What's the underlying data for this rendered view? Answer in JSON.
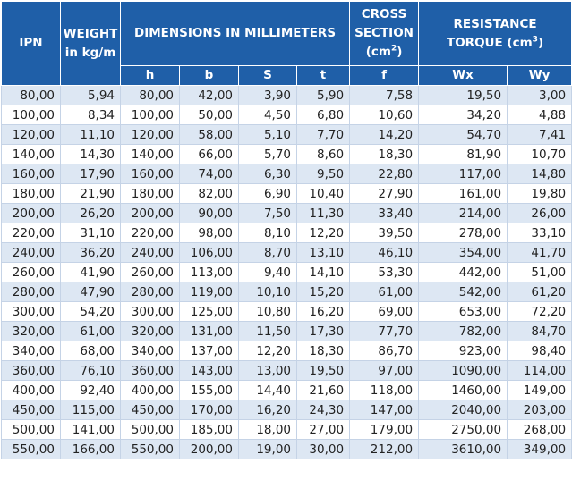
{
  "header": {
    "ipn": "IPN",
    "weight": {
      "line1": "WEIGHT",
      "line2": "in kg/m"
    },
    "dimensions": "DIMENSIONS IN MILLIMETERS",
    "cross_section": {
      "line1": "CROSS",
      "line2": "SECTION",
      "unit": "(cm",
      "sup": "2",
      "close": ")"
    },
    "resistance": {
      "line1": "RESISTANCE",
      "line2": "TORQUE (cm",
      "sup": "3",
      "close": ")"
    },
    "subheaders": [
      "h",
      "b",
      "S",
      "t",
      "f",
      "Wx",
      "Wy"
    ]
  },
  "table": {
    "rows": [
      [
        "80,00",
        "5,94",
        "80,00",
        "42,00",
        "3,90",
        "5,90",
        "7,58",
        "19,50",
        "3,00"
      ],
      [
        "100,00",
        "8,34",
        "100,00",
        "50,00",
        "4,50",
        "6,80",
        "10,60",
        "34,20",
        "4,88"
      ],
      [
        "120,00",
        "11,10",
        "120,00",
        "58,00",
        "5,10",
        "7,70",
        "14,20",
        "54,70",
        "7,41"
      ],
      [
        "140,00",
        "14,30",
        "140,00",
        "66,00",
        "5,70",
        "8,60",
        "18,30",
        "81,90",
        "10,70"
      ],
      [
        "160,00",
        "17,90",
        "160,00",
        "74,00",
        "6,30",
        "9,50",
        "22,80",
        "117,00",
        "14,80"
      ],
      [
        "180,00",
        "21,90",
        "180,00",
        "82,00",
        "6,90",
        "10,40",
        "27,90",
        "161,00",
        "19,80"
      ],
      [
        "200,00",
        "26,20",
        "200,00",
        "90,00",
        "7,50",
        "11,30",
        "33,40",
        "214,00",
        "26,00"
      ],
      [
        "220,00",
        "31,10",
        "220,00",
        "98,00",
        "8,10",
        "12,20",
        "39,50",
        "278,00",
        "33,10"
      ],
      [
        "240,00",
        "36,20",
        "240,00",
        "106,00",
        "8,70",
        "13,10",
        "46,10",
        "354,00",
        "41,70"
      ],
      [
        "260,00",
        "41,90",
        "260,00",
        "113,00",
        "9,40",
        "14,10",
        "53,30",
        "442,00",
        "51,00"
      ],
      [
        "280,00",
        "47,90",
        "280,00",
        "119,00",
        "10,10",
        "15,20",
        "61,00",
        "542,00",
        "61,20"
      ],
      [
        "300,00",
        "54,20",
        "300,00",
        "125,00",
        "10,80",
        "16,20",
        "69,00",
        "653,00",
        "72,20"
      ],
      [
        "320,00",
        "61,00",
        "320,00",
        "131,00",
        "11,50",
        "17,30",
        "77,70",
        "782,00",
        "84,70"
      ],
      [
        "340,00",
        "68,00",
        "340,00",
        "137,00",
        "12,20",
        "18,30",
        "86,70",
        "923,00",
        "98,40"
      ],
      [
        "360,00",
        "76,10",
        "360,00",
        "143,00",
        "13,00",
        "19,50",
        "97,00",
        "1090,00",
        "114,00"
      ],
      [
        "400,00",
        "92,40",
        "400,00",
        "155,00",
        "14,40",
        "21,60",
        "118,00",
        "1460,00",
        "149,00"
      ],
      [
        "450,00",
        "115,00",
        "450,00",
        "170,00",
        "16,20",
        "24,30",
        "147,00",
        "2040,00",
        "203,00"
      ],
      [
        "500,00",
        "141,00",
        "500,00",
        "185,00",
        "18,00",
        "27,00",
        "179,00",
        "2750,00",
        "268,00"
      ],
      [
        "550,00",
        "166,00",
        "550,00",
        "200,00",
        "19,00",
        "30,00",
        "212,00",
        "3610,00",
        "349,00"
      ]
    ]
  }
}
